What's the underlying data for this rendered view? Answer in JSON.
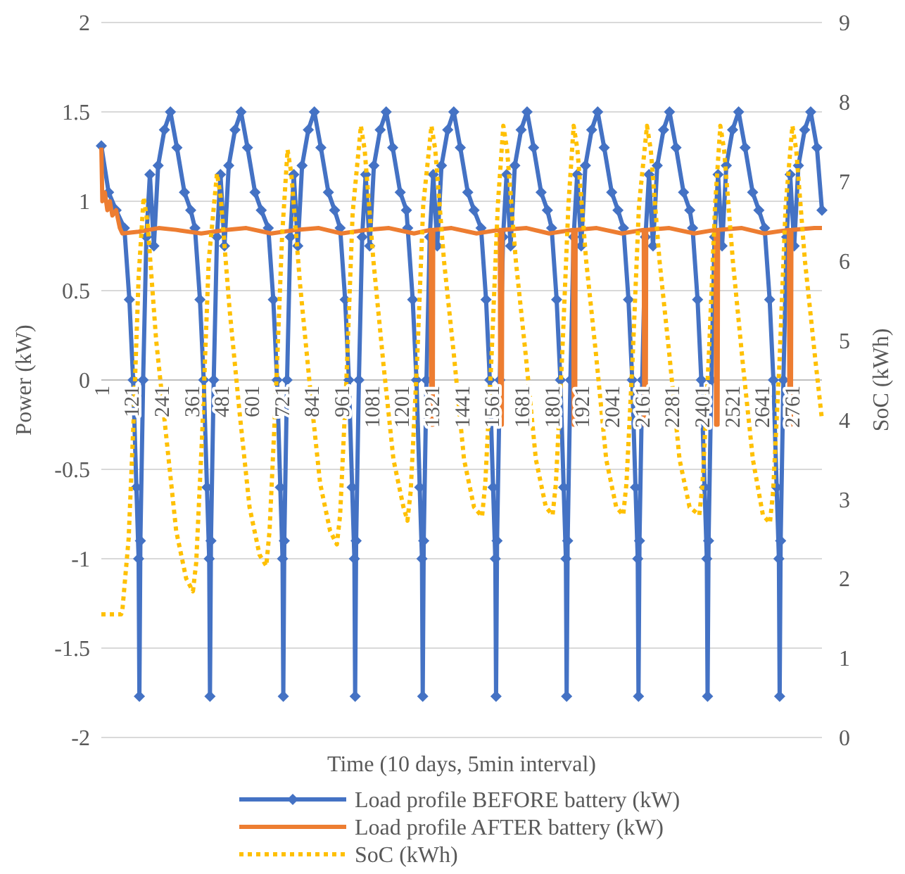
{
  "chart_data": {
    "type": "line",
    "xlabel": "Time (10 days, 5min interval)",
    "ylabel": "Power (kW)",
    "y2label": "SoC (kWh)",
    "xlim": [
      1,
      2880
    ],
    "xticks": [
      1,
      121,
      241,
      361,
      481,
      601,
      721,
      841,
      961,
      1081,
      1201,
      1321,
      1441,
      1561,
      1681,
      1801,
      1921,
      2041,
      2161,
      2281,
      2401,
      2521,
      2641,
      2761
    ],
    "ylim": [
      -2,
      2
    ],
    "yticks": [
      -2,
      -1.5,
      -1,
      -0.5,
      0,
      0.5,
      1,
      1.5,
      2
    ],
    "y2lim": [
      0,
      9
    ],
    "y2ticks": [
      0,
      1,
      2,
      3,
      4,
      5,
      6,
      7,
      8,
      9
    ],
    "grid": "y",
    "legend": "bottom",
    "series": [
      {
        "name": "Load profile BEFORE battery (kW)",
        "color": "#4472c4",
        "marker": "diamond",
        "line_style": "solid",
        "x": [
          1,
          30,
          60,
          93,
          113,
          128,
          141,
          150,
          153,
          157,
          168,
          181,
          195,
          211,
          228,
          253,
          277,
          303,
          333,
          358,
          375,
          395,
          410,
          423,
          432,
          435,
          439,
          450,
          463,
          477,
          493,
          510,
          535,
          559,
          585,
          615,
          640,
          668,
          688,
          703,
          716,
          725,
          728,
          732,
          743,
          756,
          770,
          786,
          803,
          828,
          852,
          878,
          908,
          933,
          955,
          975,
          990,
          1003,
          1012,
          1015,
          1019,
          1030,
          1043,
          1057,
          1073,
          1090,
          1115,
          1139,
          1165,
          1195,
          1220,
          1225,
          1245,
          1260,
          1273,
          1282,
          1285,
          1289,
          1300,
          1313,
          1327,
          1343,
          1360,
          1385,
          1409,
          1435,
          1465,
          1490,
          1518,
          1538,
          1553,
          1566,
          1575,
          1578,
          1582,
          1593,
          1606,
          1620,
          1636,
          1653,
          1678,
          1702,
          1728,
          1758,
          1783,
          1800,
          1820,
          1835,
          1848,
          1857,
          1860,
          1864,
          1875,
          1888,
          1902,
          1918,
          1935,
          1960,
          1984,
          2010,
          2040,
          2065,
          2087,
          2107,
          2122,
          2135,
          2144,
          2147,
          2151,
          2162,
          2175,
          2189,
          2205,
          2222,
          2247,
          2271,
          2297,
          2327,
          2352,
          2363,
          2383,
          2398,
          2411,
          2420,
          2423,
          2427,
          2438,
          2451,
          2465,
          2481,
          2498,
          2523,
          2547,
          2573,
          2603,
          2628,
          2651,
          2671,
          2686,
          2699,
          2708,
          2711,
          2715,
          2726,
          2739,
          2753,
          2769,
          2786,
          2811,
          2835,
          2860,
          2880
        ],
        "values": [
          1.31,
          1.05,
          0.95,
          0.85,
          0.45,
          0,
          -0.6,
          -1,
          -1.77,
          -0.9,
          0,
          0.8,
          1.15,
          0.75,
          1.2,
          1.4,
          1.5,
          1.3,
          1.05,
          0.95,
          0.85,
          0.45,
          0,
          -0.6,
          -1,
          -1.77,
          -0.9,
          0,
          0.8,
          1.15,
          0.75,
          1.2,
          1.4,
          1.5,
          1.3,
          1.05,
          0.95,
          0.85,
          0.45,
          0,
          -0.6,
          -1,
          -1.77,
          -0.9,
          0,
          0.8,
          1.15,
          0.75,
          1.2,
          1.4,
          1.5,
          1.3,
          1.05,
          0.95,
          0.85,
          0.45,
          0,
          -0.6,
          -1,
          -1.77,
          -0.9,
          0,
          0.8,
          1.15,
          0.75,
          1.2,
          1.4,
          1.5,
          1.3,
          1.05,
          0.95,
          0.85,
          0.45,
          0,
          -0.6,
          -1,
          -1.77,
          -0.9,
          0,
          0.8,
          1.15,
          0.75,
          1.2,
          1.4,
          1.5,
          1.3,
          1.05,
          0.95,
          0.85,
          0.45,
          0,
          -0.6,
          -1,
          -1.77,
          -0.9,
          0,
          0.8,
          1.15,
          0.75,
          1.2,
          1.4,
          1.5,
          1.3,
          1.05,
          0.95,
          0.85,
          0.45,
          0,
          -0.6,
          -1,
          -1.77,
          -0.9,
          0,
          0.8,
          1.15,
          0.75,
          1.2,
          1.4,
          1.5,
          1.3,
          1.05,
          0.95,
          0.85,
          0.45,
          0,
          -0.6,
          -1,
          -1.77,
          -0.9,
          0,
          0.8,
          1.15,
          0.75,
          1.2,
          1.4,
          1.5,
          1.3,
          1.05,
          0.95,
          0.85,
          0.45,
          0,
          -0.6,
          -1,
          -1.77,
          -0.9,
          0,
          0.8,
          1.15,
          0.75,
          1.2,
          1.4,
          1.5,
          1.3,
          1.05,
          0.95,
          0.85,
          0.45,
          0,
          -0.6,
          -1,
          -1.77,
          -0.9,
          0,
          0.8,
          1.15,
          0.75,
          1.2,
          1.4,
          1.5,
          1.3,
          0.95
        ]
      },
      {
        "name": "Load profile AFTER battery (kW)",
        "color": "#ed7d31",
        "marker": "none",
        "line_style": "solid",
        "x": [
          1,
          5,
          15,
          25,
          35,
          45,
          60,
          75,
          85,
          150,
          230,
          300,
          400,
          500,
          580,
          680,
          780,
          870,
          960,
          1060,
          1150,
          1250,
          1317,
          1319,
          1325,
          1327,
          1400,
          1500,
          1593,
          1595,
          1601,
          1603,
          1700,
          1790,
          1886,
          1888,
          1894,
          1896,
          1980,
          2080,
          2168,
          2170,
          2176,
          2178,
          2270,
          2370,
          2455,
          2457,
          2463,
          2465,
          2560,
          2650,
          2748,
          2750,
          2756,
          2758,
          2850,
          2880
        ],
        "values": [
          1.3,
          1,
          1.05,
          0.95,
          1,
          0.92,
          0.95,
          0.85,
          0.82,
          0.83,
          0.85,
          0.84,
          0.82,
          0.84,
          0.85,
          0.82,
          0.84,
          0.85,
          0.82,
          0.84,
          0.85,
          0.82,
          0.84,
          -0.25,
          -0.25,
          0.84,
          0.85,
          0.82,
          0.84,
          -0.25,
          -0.25,
          0.84,
          0.85,
          0.82,
          0.84,
          -0.25,
          -0.25,
          0.84,
          0.85,
          0.82,
          0.84,
          -0.25,
          -0.25,
          0.84,
          0.85,
          0.82,
          0.84,
          -0.25,
          -0.25,
          0.84,
          0.85,
          0.82,
          0.84,
          -0.25,
          -0.25,
          0.84,
          0.85,
          0.85
        ]
      },
      {
        "name": "SoC (kWh)",
        "color": "#ffc000",
        "marker": "none",
        "line_style": "dotted",
        "axis": "y2",
        "x": [
          1,
          80,
          85,
          110,
          130,
          150,
          170,
          185,
          220,
          260,
          300,
          340,
          367,
          380,
          405,
          430,
          463,
          478,
          513,
          553,
          593,
          633,
          660,
          673,
          698,
          723,
          745,
          760,
          795,
          835,
          875,
          915,
          942,
          955,
          980,
          1005,
          1038,
          1053,
          1088,
          1128,
          1168,
          1208,
          1224,
          1237,
          1262,
          1287,
          1320,
          1335,
          1370,
          1410,
          1450,
          1490,
          1522,
          1535,
          1560,
          1585,
          1607,
          1622,
          1657,
          1697,
          1737,
          1777,
          1804,
          1817,
          1842,
          1867,
          1888,
          1903,
          1938,
          1978,
          2018,
          2058,
          2086,
          2099,
          2124,
          2149,
          2181,
          2196,
          2231,
          2271,
          2311,
          2351,
          2390,
          2403,
          2428,
          2453,
          2474,
          2489,
          2524,
          2564,
          2604,
          2644,
          2672,
          2685,
          2710,
          2735,
          2762,
          2777,
          2812,
          2852,
          2880
        ],
        "values": [
          1.55,
          1.55,
          1.6,
          2.5,
          4,
          5.8,
          6.8,
          6.5,
          5,
          3.8,
          2.6,
          2,
          1.84,
          2.2,
          3.9,
          6,
          7.1,
          6.8,
          5.4,
          4.1,
          2.9,
          2.3,
          2.16,
          2.6,
          4.3,
          6.3,
          7.4,
          7.1,
          5.7,
          4.4,
          3.2,
          2.6,
          2.43,
          2.8,
          4.5,
          6.6,
          7.7,
          7.4,
          6,
          4.7,
          3.5,
          2.9,
          2.73,
          3.1,
          4.7,
          6.7,
          7.7,
          7.4,
          6,
          4.8,
          3.5,
          2.9,
          2.78,
          3.2,
          4.8,
          6.7,
          7.7,
          7.4,
          6,
          4.8,
          3.5,
          2.9,
          2.8,
          3.2,
          4.8,
          6.7,
          7.7,
          7.4,
          6,
          4.8,
          3.5,
          2.9,
          2.8,
          3.2,
          4.8,
          6.7,
          7.7,
          7.4,
          6,
          4.8,
          3.5,
          2.9,
          2.8,
          3.2,
          4.8,
          6.7,
          7.7,
          7.4,
          6,
          4.7,
          3.5,
          2.8,
          2.7,
          3.1,
          4.7,
          6.7,
          7.7,
          7.4,
          6,
          4.8,
          4
        ]
      }
    ]
  }
}
